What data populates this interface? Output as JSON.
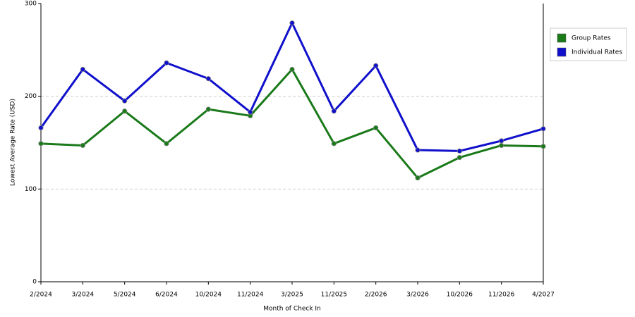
{
  "chart_data": {
    "type": "line",
    "x_label": "Month of Check In",
    "y_label": "Lowest Average Rate (USD)",
    "categories": [
      "2/2024",
      "3/2024",
      "5/2024",
      "6/2024",
      "10/2024",
      "11/2024",
      "3/2025",
      "11/2025",
      "2/2026",
      "3/2026",
      "10/2026",
      "11/2026",
      "4/2027"
    ],
    "series": [
      {
        "name": "Group Rates",
        "color": "#1a7a1a",
        "values": [
          149,
          147,
          184,
          149,
          186,
          179,
          229,
          149,
          166,
          112,
          134,
          147,
          146
        ]
      },
      {
        "name": "Individual Rates",
        "color": "#1010cc",
        "values": [
          166,
          229,
          195,
          236,
          219,
          183,
          279,
          184,
          233,
          142,
          141,
          152,
          165
        ]
      }
    ],
    "ylim": [
      0,
      300
    ],
    "yticks": [
      0,
      100,
      200,
      300
    ],
    "grid": true,
    "legend": "right"
  }
}
